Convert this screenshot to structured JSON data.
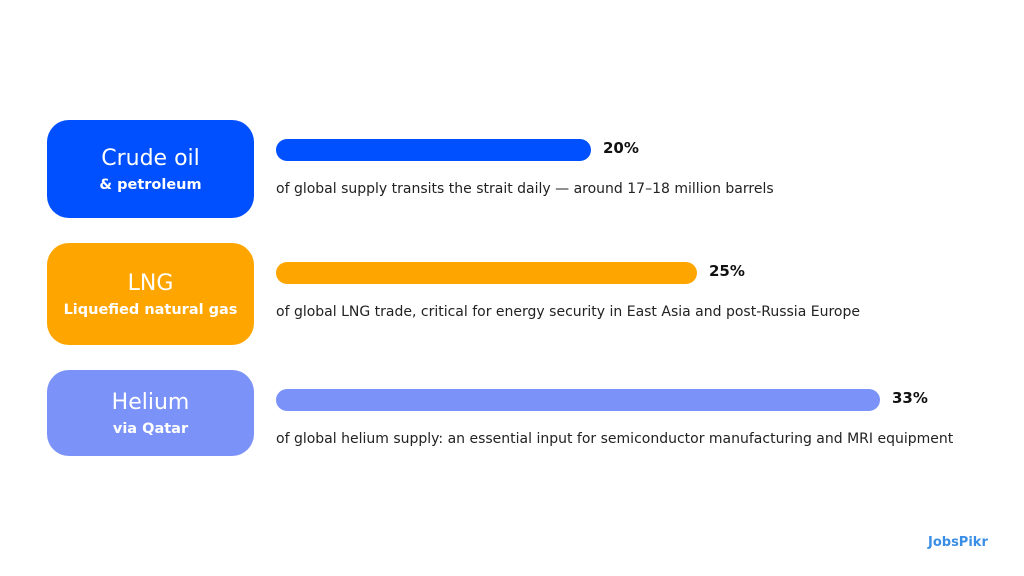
{
  "chart_data": {
    "type": "bar",
    "orientation": "horizontal",
    "items": [
      {
        "title": "Crude oil",
        "subtitle": "& petroleum",
        "value": 20,
        "label": "20%",
        "description": "of global supply transits the strait daily — around 17–18 million barrels",
        "color": "#0050FF"
      },
      {
        "title": "LNG",
        "subtitle": "Liquefied natural gas",
        "value": 25,
        "label": "25%",
        "description": "of global LNG trade, critical for energy security in East Asia and post-Russia Europe",
        "color": "#FFA500"
      },
      {
        "title": "Helium",
        "subtitle": "via Qatar",
        "value": 33,
        "label": "33%",
        "description": "of global helium supply: an essential input for semiconductor manufacturing and MRI equipment",
        "color": "#7B93F8"
      }
    ]
  },
  "logo": "JobsPikr"
}
